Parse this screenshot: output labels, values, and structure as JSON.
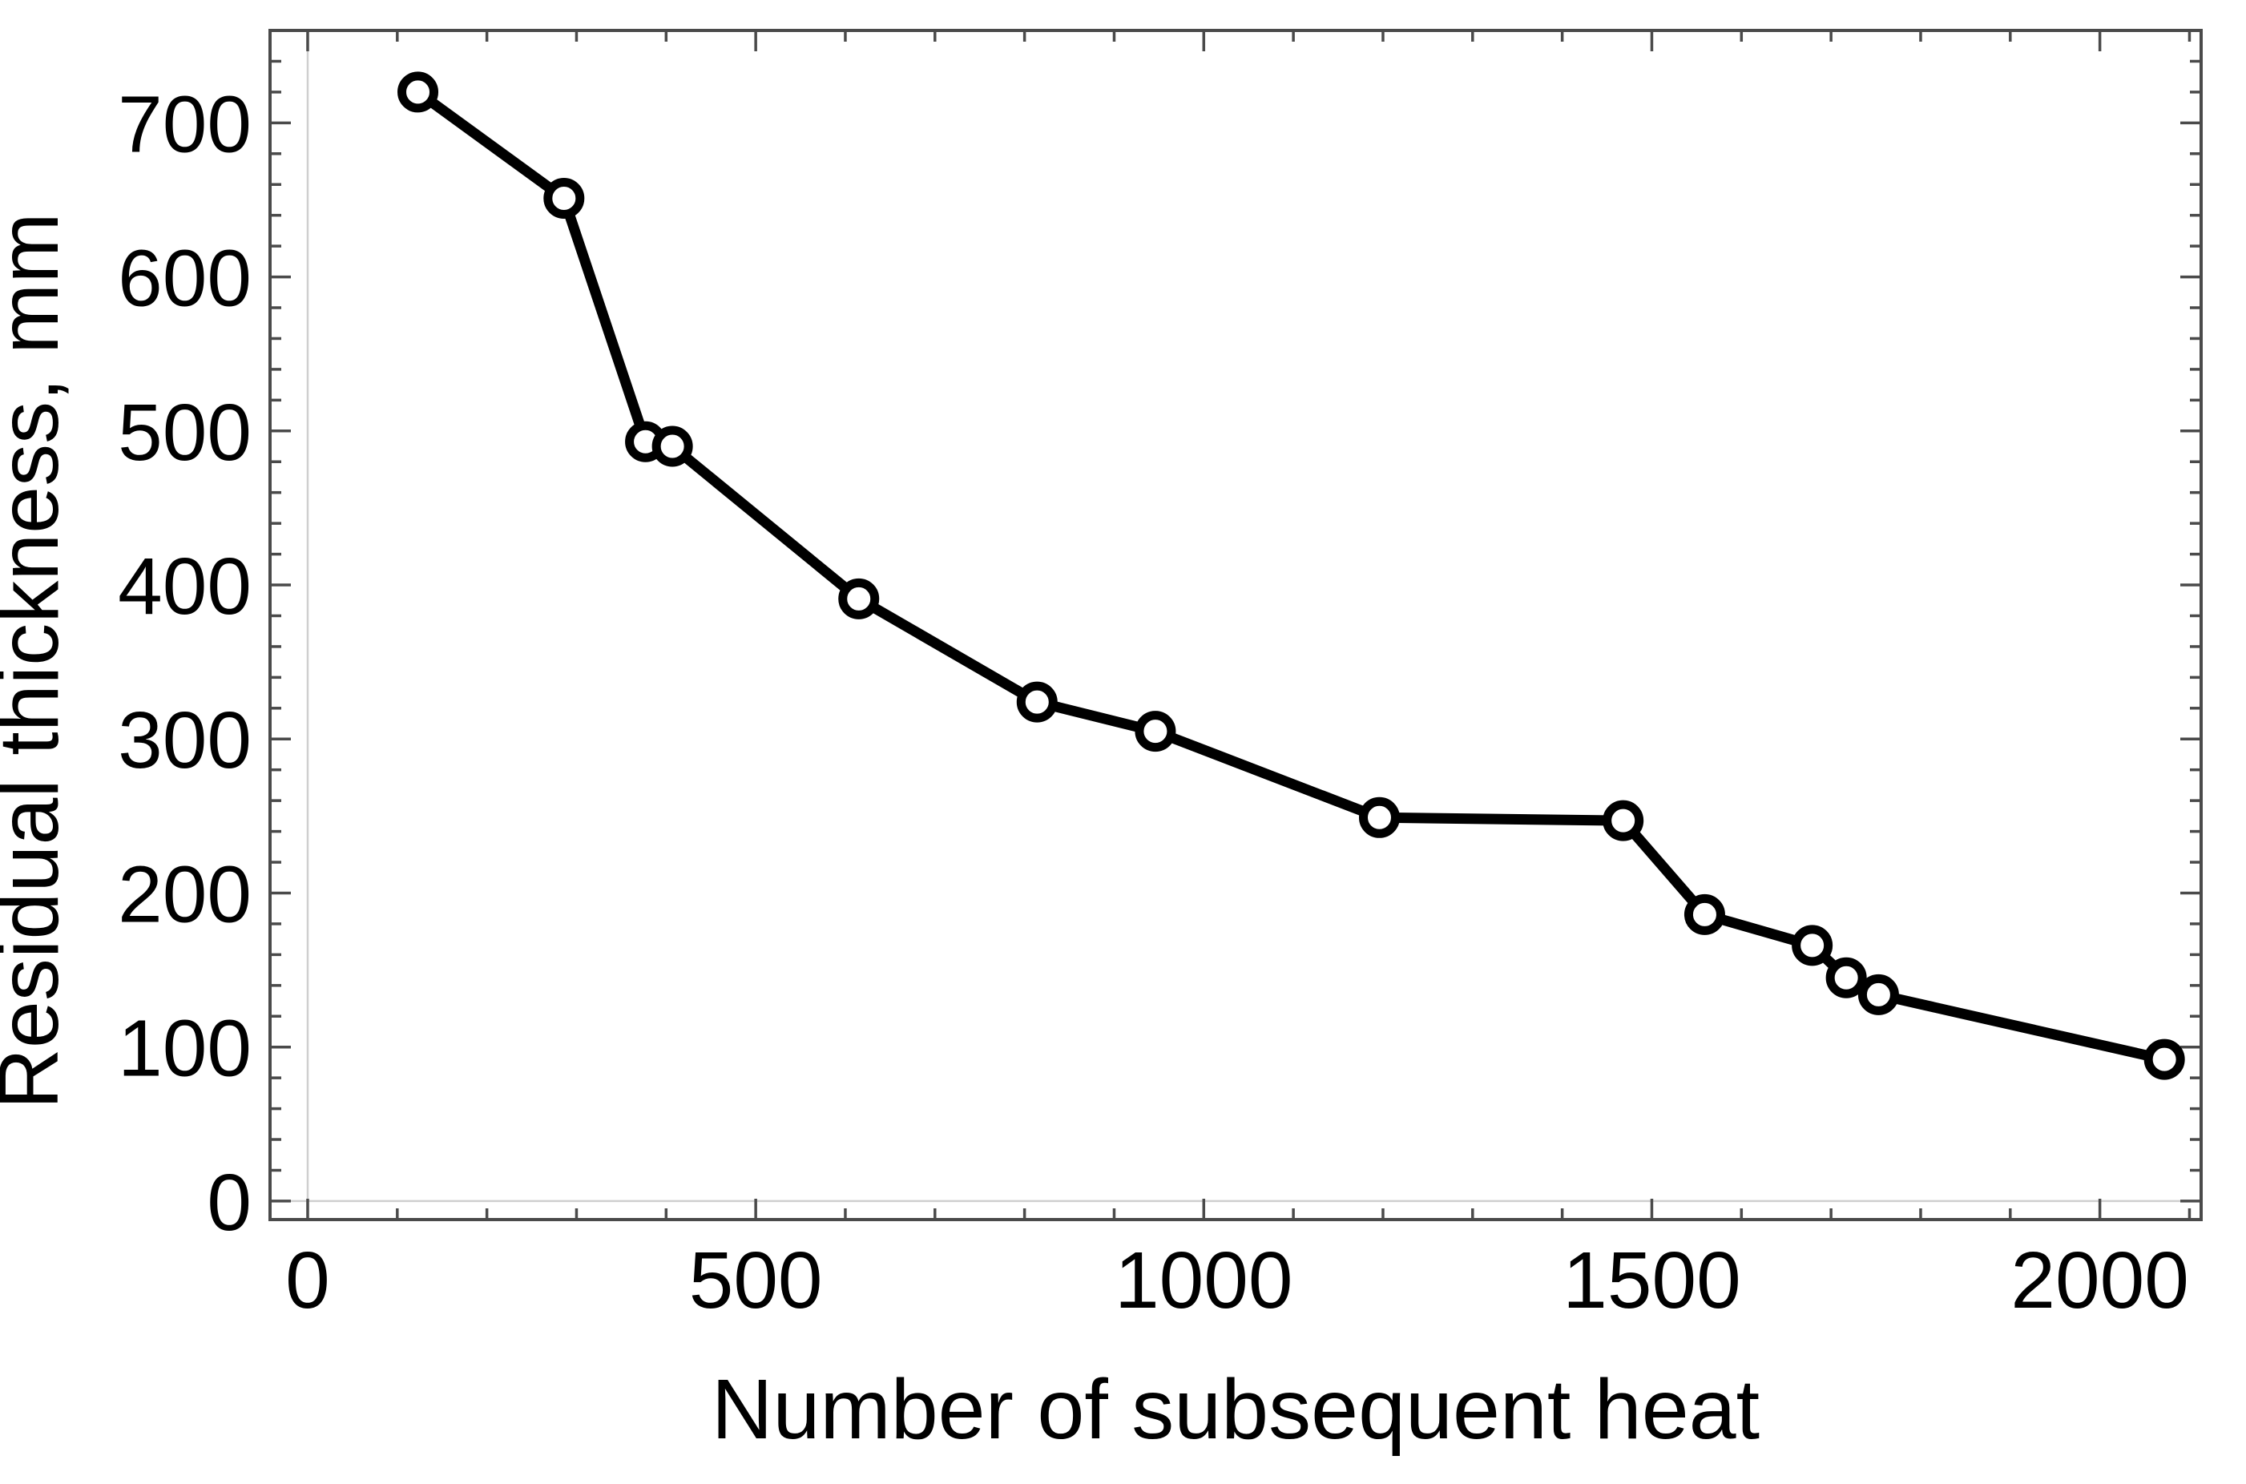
{
  "chart_data": {
    "type": "line",
    "title": "",
    "xlabel": "Number of subsequent heat",
    "ylabel": "Residual thickness, mm",
    "legend": "none",
    "grid": "axis-origin-lines-only",
    "marker": "open-circle",
    "line_color": "#000000",
    "marker_fill": "#ffffff",
    "frame_color": "#4a4a4a",
    "origin_line_color": "#cfcfcf",
    "x_axis": {
      "min": -42,
      "max": 2113,
      "major_ticks": [
        0,
        500,
        1000,
        1500,
        2000
      ],
      "major_tick_labels": [
        "0",
        "500",
        "1000",
        "1500",
        "2000"
      ],
      "minor_tick_step": 100
    },
    "y_axis": {
      "min": -12,
      "max": 760,
      "major_ticks": [
        0,
        100,
        200,
        300,
        400,
        500,
        600,
        700
      ],
      "major_tick_labels": [
        "0",
        "100",
        "200",
        "300",
        "400",
        "500",
        "600",
        "700"
      ],
      "minor_tick_step": 20
    },
    "series": [
      {
        "name": "residual-thickness",
        "points": [
          [
            123,
            720
          ],
          [
            286,
            651
          ],
          [
            377,
            493
          ],
          [
            407,
            490
          ],
          [
            615,
            391
          ],
          [
            814,
            324
          ],
          [
            946,
            305
          ],
          [
            1196,
            249
          ],
          [
            1468,
            247
          ],
          [
            1559,
            186
          ],
          [
            1679,
            166
          ],
          [
            1717,
            145
          ],
          [
            1753,
            134
          ],
          [
            2072,
            92
          ]
        ]
      }
    ]
  }
}
